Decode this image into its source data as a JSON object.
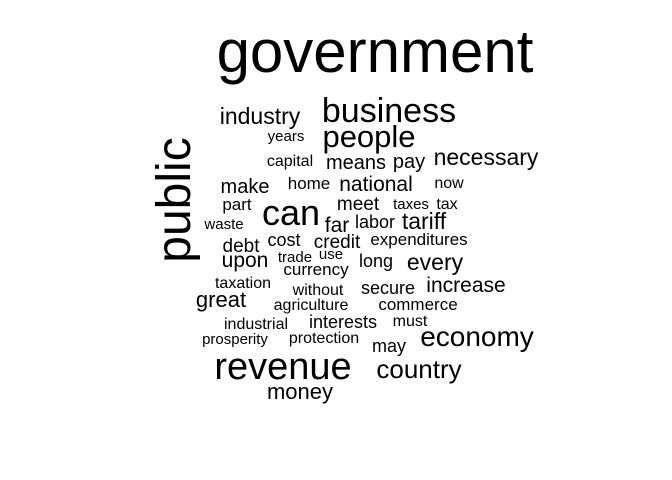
{
  "wordcloud": {
    "text_color": "#000000",
    "background_color": "#ffffff",
    "words": [
      {
        "text": "government"
      },
      {
        "text": "business"
      },
      {
        "text": "industry"
      },
      {
        "text": "people"
      },
      {
        "text": "years"
      },
      {
        "text": "public"
      },
      {
        "text": "capital"
      },
      {
        "text": "means"
      },
      {
        "text": "pay"
      },
      {
        "text": "necessary"
      },
      {
        "text": "make"
      },
      {
        "text": "home"
      },
      {
        "text": "national"
      },
      {
        "text": "now"
      },
      {
        "text": "part"
      },
      {
        "text": "can"
      },
      {
        "text": "meet"
      },
      {
        "text": "taxes"
      },
      {
        "text": "tax"
      },
      {
        "text": "waste"
      },
      {
        "text": "far"
      },
      {
        "text": "labor"
      },
      {
        "text": "tariff"
      },
      {
        "text": "debt"
      },
      {
        "text": "cost"
      },
      {
        "text": "credit"
      },
      {
        "text": "expenditures"
      },
      {
        "text": "upon"
      },
      {
        "text": "trade"
      },
      {
        "text": "use"
      },
      {
        "text": "long"
      },
      {
        "text": "every"
      },
      {
        "text": "currency"
      },
      {
        "text": "taxation"
      },
      {
        "text": "without"
      },
      {
        "text": "secure"
      },
      {
        "text": "increase"
      },
      {
        "text": "great"
      },
      {
        "text": "agriculture"
      },
      {
        "text": "commerce"
      },
      {
        "text": "industrial"
      },
      {
        "text": "interests"
      },
      {
        "text": "must"
      },
      {
        "text": "prosperity"
      },
      {
        "text": "protection"
      },
      {
        "text": "may"
      },
      {
        "text": "economy"
      },
      {
        "text": "revenue"
      },
      {
        "text": "country"
      },
      {
        "text": "money"
      }
    ]
  }
}
